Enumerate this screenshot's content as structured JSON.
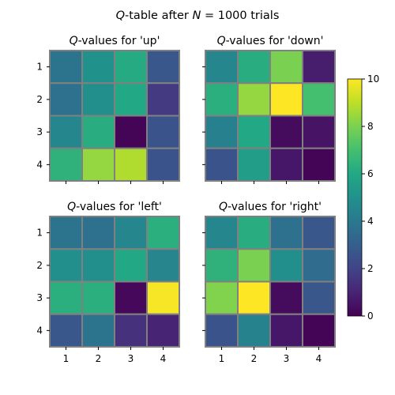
{
  "figure": {
    "title_prefix": "Q",
    "title_mid": "-table after ",
    "title_var": "N",
    "title_rest": " = 1000 trials"
  },
  "chart_data": [
    {
      "type": "heatmap",
      "title_prefix": "Q",
      "title": "-values for 'up'",
      "x_ticks": [
        "1",
        "2",
        "3",
        "4"
      ],
      "y_ticks": [
        "1",
        "2",
        "3",
        "4"
      ],
      "values": [
        [
          3.8,
          5.0,
          6.1,
          2.7
        ],
        [
          3.7,
          4.9,
          6.0,
          1.7
        ],
        [
          4.6,
          6.2,
          0.1,
          2.6
        ],
        [
          6.4,
          8.4,
          8.8,
          2.6
        ]
      ]
    },
    {
      "type": "heatmap",
      "title_prefix": "Q",
      "title": "-values for 'down'",
      "x_ticks": [
        "1",
        "2",
        "3",
        "4"
      ],
      "y_ticks": [
        "1",
        "2",
        "3",
        "4"
      ],
      "values": [
        [
          4.6,
          6.2,
          8.0,
          0.8
        ],
        [
          6.3,
          8.4,
          10.0,
          7.0
        ],
        [
          4.3,
          6.0,
          0.3,
          0.5
        ],
        [
          2.6,
          5.5,
          0.6,
          0.1
        ]
      ]
    },
    {
      "type": "heatmap",
      "title_prefix": "Q",
      "title": "-values for 'left'",
      "x_ticks": [
        "1",
        "2",
        "3",
        "4"
      ],
      "y_ticks": [
        "1",
        "2",
        "3",
        "4"
      ],
      "values": [
        [
          3.8,
          3.7,
          4.6,
          6.3
        ],
        [
          4.9,
          4.9,
          6.0,
          4.5
        ],
        [
          6.3,
          6.3,
          0.2,
          9.9
        ],
        [
          2.7,
          3.8,
          1.4,
          1.0
        ]
      ]
    },
    {
      "type": "heatmap",
      "title_prefix": "Q",
      "title": "-values for 'right'",
      "x_ticks": [
        "1",
        "2",
        "3",
        "4"
      ],
      "y_ticks": [
        "1",
        "2",
        "3",
        "4"
      ],
      "values": [
        [
          4.6,
          6.2,
          3.7,
          2.7
        ],
        [
          6.4,
          8.0,
          4.9,
          3.5
        ],
        [
          8.1,
          10.0,
          0.3,
          2.7
        ],
        [
          2.6,
          4.4,
          0.6,
          0.1
        ]
      ]
    }
  ],
  "colorbar": {
    "colormap": "viridis",
    "vmin": 0,
    "vmax": 10,
    "ticks": [
      "0",
      "2",
      "4",
      "6",
      "8",
      "10"
    ]
  },
  "style": {
    "grid_line_color": "#808080"
  }
}
